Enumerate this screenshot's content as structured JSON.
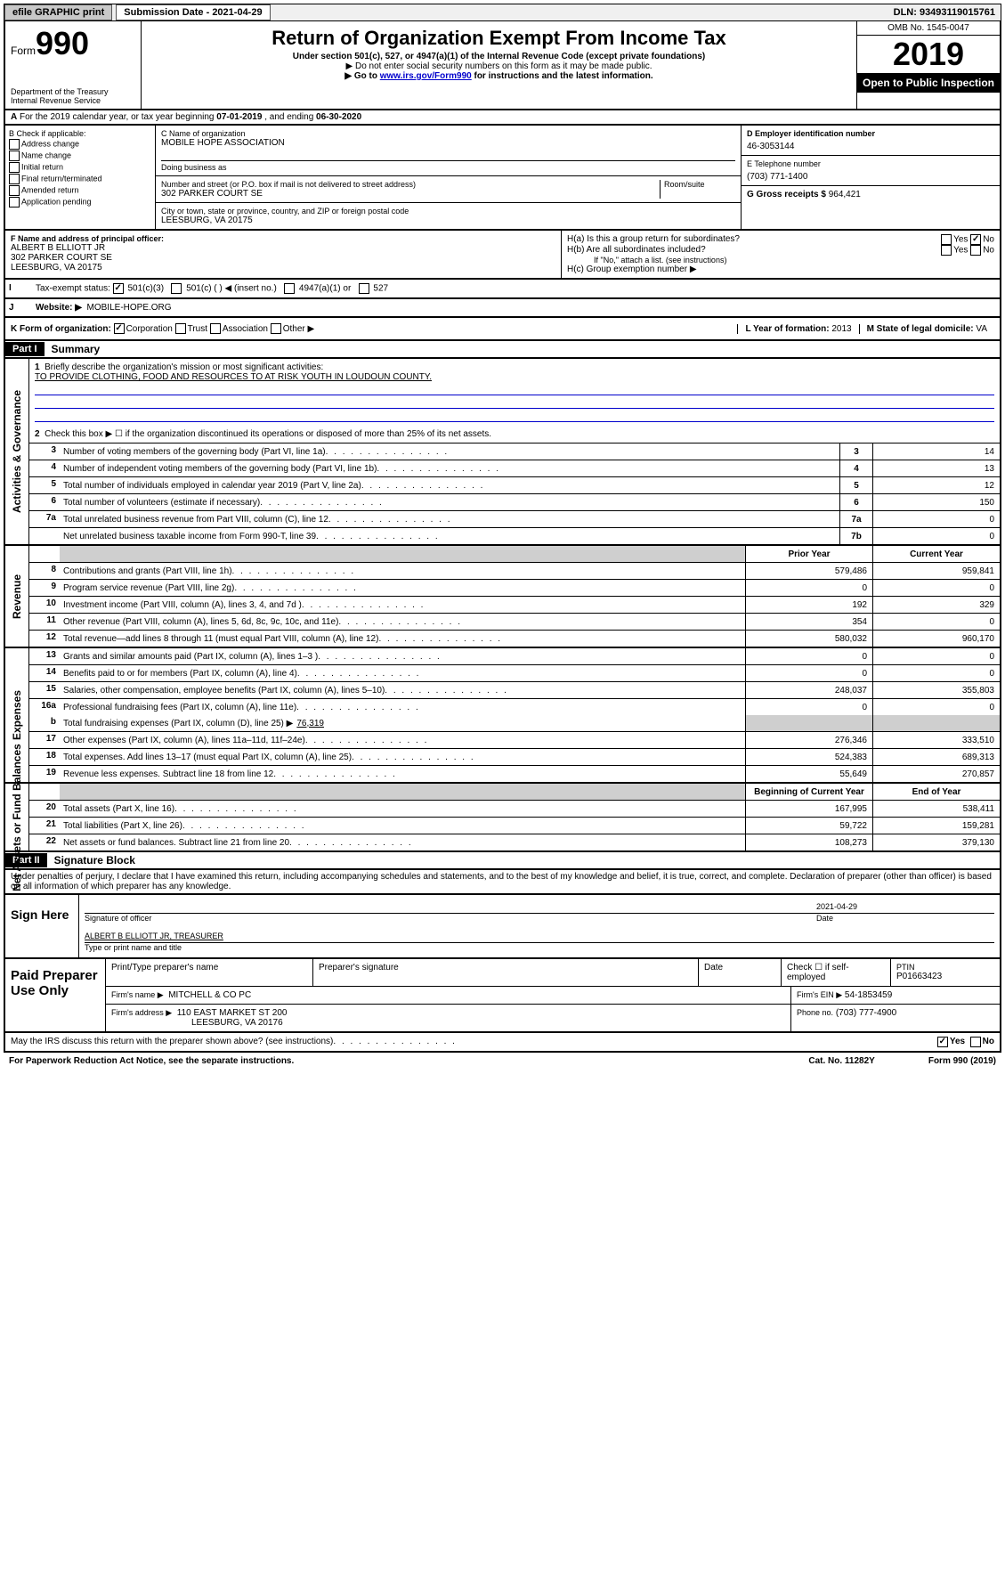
{
  "topbar": {
    "efile": "efile GRAPHIC print",
    "submission": "Submission Date - 2021-04-29",
    "dln": "DLN: 93493119015761"
  },
  "header": {
    "form_prefix": "Form",
    "form_number": "990",
    "dept": "Department of the Treasury\nInternal Revenue Service",
    "title": "Return of Organization Exempt From Income Tax",
    "subtitle1": "Under section 501(c), 527, or 4947(a)(1) of the Internal Revenue Code (except private foundations)",
    "subtitle2": "▶ Do not enter social security numbers on this form as it may be made public.",
    "subtitle3_pre": "▶ Go to ",
    "subtitle3_link": "www.irs.gov/Form990",
    "subtitle3_post": " for instructions and the latest information.",
    "omb": "OMB No. 1545-0047",
    "year": "2019",
    "open": "Open to Public Inspection"
  },
  "row_a": {
    "text_pre": "For the 2019 calendar year, or tax year beginning ",
    "begin": "07-01-2019",
    "mid": " , and ending ",
    "end": "06-30-2020"
  },
  "col_b": {
    "title": "B Check if applicable:",
    "items": [
      "Address change",
      "Name change",
      "Initial return",
      "Final return/terminated",
      "Amended return",
      "Application pending"
    ]
  },
  "col_c": {
    "name_label": "C Name of organization",
    "name": "MOBILE HOPE ASSOCIATION",
    "dba_label": "Doing business as",
    "addr_label": "Number and street (or P.O. box if mail is not delivered to street address)",
    "room_label": "Room/suite",
    "addr": "302 PARKER COURT SE",
    "city_label": "City or town, state or province, country, and ZIP or foreign postal code",
    "city": "LEESBURG, VA  20175"
  },
  "col_d": {
    "ein_label": "D Employer identification number",
    "ein": "46-3053144",
    "phone_label": "E Telephone number",
    "phone": "(703) 771-1400",
    "gross_label": "G Gross receipts $",
    "gross": "964,421"
  },
  "officer": {
    "label": "F Name and address of principal officer:",
    "name": "ALBERT B ELLIOTT JR",
    "addr1": "302 PARKER COURT SE",
    "addr2": "LEESBURG, VA  20175"
  },
  "h_block": {
    "ha": "H(a)  Is this a group return for subordinates?",
    "hb": "H(b)  Are all subordinates included?",
    "hb_note": "If \"No,\" attach a list. (see instructions)",
    "hc": "H(c)  Group exemption number ▶",
    "yes": "Yes",
    "no": "No"
  },
  "row_i": {
    "label": "Tax-exempt status:",
    "opt1": "501(c)(3)",
    "opt2": "501(c) (   ) ◀ (insert no.)",
    "opt3": "4947(a)(1) or",
    "opt4": "527"
  },
  "row_j": {
    "label": "Website: ▶",
    "value": "MOBILE-HOPE.ORG"
  },
  "row_k": {
    "label": "K Form of organization:",
    "corp": "Corporation",
    "trust": "Trust",
    "assoc": "Association",
    "other": "Other ▶",
    "l_label": "L Year of formation:",
    "l_val": "2013",
    "m_label": "M State of legal domicile:",
    "m_val": "VA"
  },
  "part1": {
    "label": "Part I",
    "title": "Summary"
  },
  "section_ag": {
    "title": "Activities & Governance",
    "line1_label": "Briefly describe the organization's mission or most significant activities:",
    "line1_text": "TO PROVIDE CLOTHING, FOOD AND RESOURCES TO AT RISK YOUTH IN LOUDOUN COUNTY.",
    "line2": "Check this box ▶ ☐  if the organization discontinued its operations or disposed of more than 25% of its net assets.",
    "lines": [
      {
        "n": "3",
        "d": "Number of voting members of the governing body (Part VI, line 1a)",
        "b": "3",
        "v": "14"
      },
      {
        "n": "4",
        "d": "Number of independent voting members of the governing body (Part VI, line 1b)",
        "b": "4",
        "v": "13"
      },
      {
        "n": "5",
        "d": "Total number of individuals employed in calendar year 2019 (Part V, line 2a)",
        "b": "5",
        "v": "12"
      },
      {
        "n": "6",
        "d": "Total number of volunteers (estimate if necessary)",
        "b": "6",
        "v": "150"
      },
      {
        "n": "7a",
        "d": "Total unrelated business revenue from Part VIII, column (C), line 12",
        "b": "7a",
        "v": "0"
      },
      {
        "n": "",
        "d": "Net unrelated business taxable income from Form 990-T, line 39",
        "b": "7b",
        "v": "0"
      }
    ]
  },
  "col_headers": {
    "prior": "Prior Year",
    "current": "Current Year",
    "begin": "Beginning of Current Year",
    "end": "End of Year"
  },
  "section_rev": {
    "title": "Revenue",
    "lines": [
      {
        "n": "8",
        "d": "Contributions and grants (Part VIII, line 1h)",
        "p": "579,486",
        "c": "959,841"
      },
      {
        "n": "9",
        "d": "Program service revenue (Part VIII, line 2g)",
        "p": "0",
        "c": "0"
      },
      {
        "n": "10",
        "d": "Investment income (Part VIII, column (A), lines 3, 4, and 7d )",
        "p": "192",
        "c": "329"
      },
      {
        "n": "11",
        "d": "Other revenue (Part VIII, column (A), lines 5, 6d, 8c, 9c, 10c, and 11e)",
        "p": "354",
        "c": "0"
      },
      {
        "n": "12",
        "d": "Total revenue—add lines 8 through 11 (must equal Part VIII, column (A), line 12)",
        "p": "580,032",
        "c": "960,170"
      }
    ]
  },
  "section_exp": {
    "title": "Expenses",
    "lines": [
      {
        "n": "13",
        "d": "Grants and similar amounts paid (Part IX, column (A), lines 1–3 )",
        "p": "0",
        "c": "0"
      },
      {
        "n": "14",
        "d": "Benefits paid to or for members (Part IX, column (A), line 4)",
        "p": "0",
        "c": "0"
      },
      {
        "n": "15",
        "d": "Salaries, other compensation, employee benefits (Part IX, column (A), lines 5–10)",
        "p": "248,037",
        "c": "355,803"
      },
      {
        "n": "16a",
        "d": "Professional fundraising fees (Part IX, column (A), line 11e)",
        "p": "0",
        "c": "0"
      }
    ],
    "line_b": {
      "n": "b",
      "d": "Total fundraising expenses (Part IX, column (D), line 25) ▶",
      "v": "76,319"
    },
    "lines2": [
      {
        "n": "17",
        "d": "Other expenses (Part IX, column (A), lines 11a–11d, 11f–24e)",
        "p": "276,346",
        "c": "333,510"
      },
      {
        "n": "18",
        "d": "Total expenses. Add lines 13–17 (must equal Part IX, column (A), line 25)",
        "p": "524,383",
        "c": "689,313"
      },
      {
        "n": "19",
        "d": "Revenue less expenses. Subtract line 18 from line 12",
        "p": "55,649",
        "c": "270,857"
      }
    ]
  },
  "section_na": {
    "title": "Net Assets or Fund Balances",
    "lines": [
      {
        "n": "20",
        "d": "Total assets (Part X, line 16)",
        "p": "167,995",
        "c": "538,411"
      },
      {
        "n": "21",
        "d": "Total liabilities (Part X, line 26)",
        "p": "59,722",
        "c": "159,281"
      },
      {
        "n": "22",
        "d": "Net assets or fund balances. Subtract line 21 from line 20",
        "p": "108,273",
        "c": "379,130"
      }
    ]
  },
  "part2": {
    "label": "Part II",
    "title": "Signature Block",
    "perjury": "Under penalties of perjury, I declare that I have examined this return, including accompanying schedules and statements, and to the best of my knowledge and belief, it is true, correct, and complete. Declaration of preparer (other than officer) is based on all information of which preparer has any knowledge."
  },
  "sign": {
    "label": "Sign Here",
    "sig_label": "Signature of officer",
    "date": "2021-04-29",
    "date_label": "Date",
    "name": "ALBERT B ELLIOTT JR, TREASURER",
    "name_label": "Type or print name and title"
  },
  "paid": {
    "label": "Paid Preparer Use Only",
    "h1": "Print/Type preparer's name",
    "h2": "Preparer's signature",
    "h3": "Date",
    "h4_chk": "Check ☐ if self-employed",
    "h5": "PTIN",
    "ptin": "P01663423",
    "firm_name_label": "Firm's name     ▶",
    "firm_name": "MITCHELL & CO PC",
    "firm_ein_label": "Firm's EIN ▶",
    "firm_ein": "54-1853459",
    "firm_addr_label": "Firm's address ▶",
    "firm_addr1": "110 EAST MARKET ST 200",
    "firm_addr2": "LEESBURG, VA  20176",
    "phone_label": "Phone no.",
    "phone": "(703) 777-4900"
  },
  "footer": {
    "discuss": "May the IRS discuss this return with the preparer shown above? (see instructions)",
    "yes": "Yes",
    "no": "No",
    "paperwork": "For Paperwork Reduction Act Notice, see the separate instructions.",
    "cat": "Cat. No. 11282Y",
    "form": "Form 990 (2019)"
  }
}
